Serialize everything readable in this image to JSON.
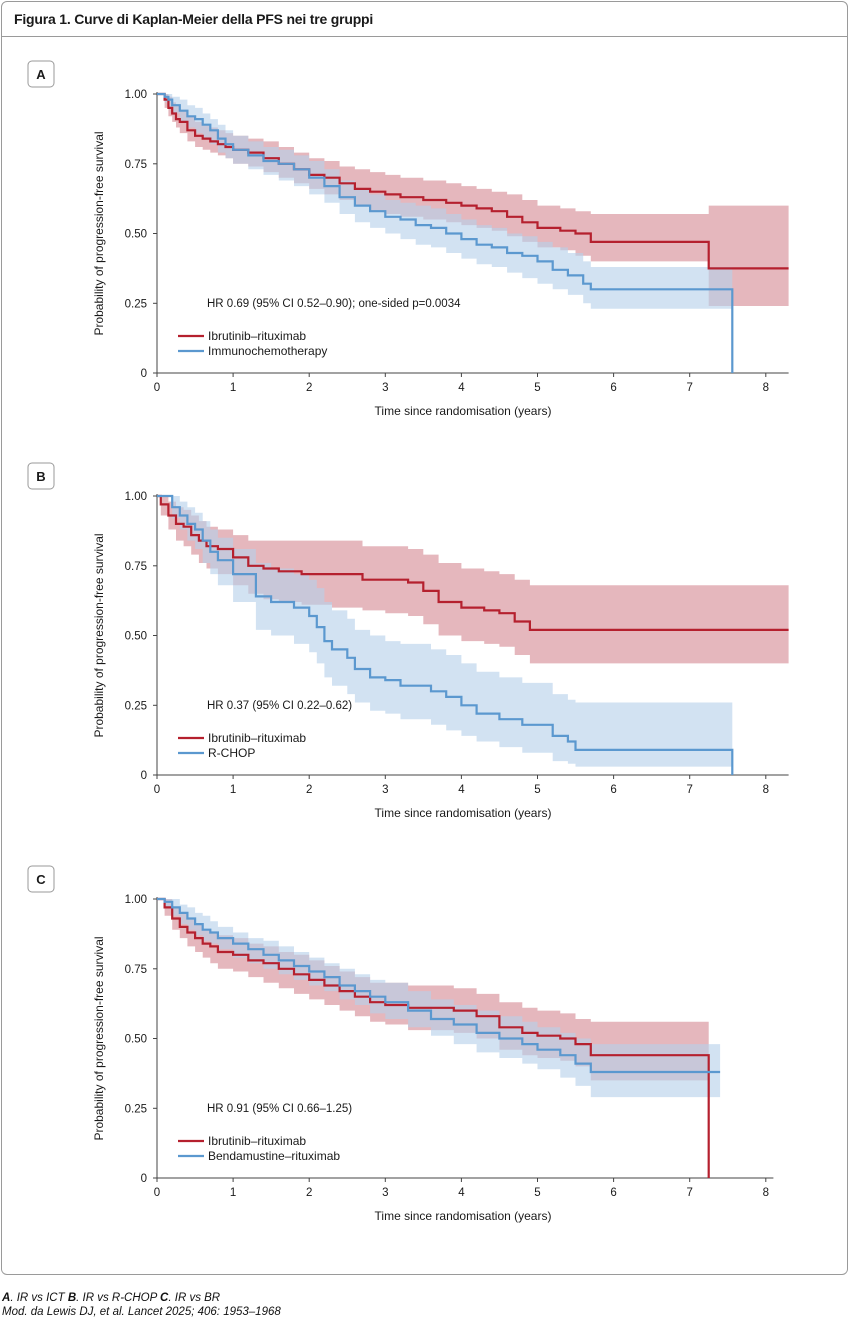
{
  "figure": {
    "title": "Figura 1. Curve di Kaplan-Meier della PFS nei tre gruppi",
    "footer_line1": [
      {
        "bold": "A",
        "text": ". IR vs ICT "
      },
      {
        "bold": "B",
        "text": ". IR vs R-CHOP "
      },
      {
        "bold": "C",
        "text": ". IR vs BR"
      }
    ],
    "footer_line2": "Mod. da Lewis DJ, et al. Lancet 2025; 406: 1953–1968",
    "colors": {
      "ir": "#b5202e",
      "ir_band": "#cf7b86",
      "comp": "#5b98cf",
      "comp_band": "#b6d0ea"
    }
  },
  "chart_data": [
    {
      "type": "line",
      "panel_label": "A",
      "title": "",
      "xlabel": "Time since randomisation (years)",
      "ylabel": "Probability of progression-free survival",
      "xlim": [
        0,
        8.3
      ],
      "ylim": [
        0,
        1
      ],
      "x_ticks": [
        "0",
        "1",
        "2",
        "3",
        "4",
        "5",
        "6",
        "7",
        "8"
      ],
      "y_ticks": [
        "0",
        "0.25",
        "0.50",
        "0.75",
        "1.00"
      ],
      "annotation": "HR 0.69 (95% CI 0.52–0.90); one-sided p=0.0034",
      "series": [
        {
          "name": "Ibrutinib–rituximab",
          "color_key": "ir",
          "x": [
            0,
            0.1,
            0.15,
            0.2,
            0.25,
            0.3,
            0.4,
            0.5,
            0.6,
            0.7,
            0.8,
            0.9,
            1.0,
            1.2,
            1.4,
            1.6,
            1.8,
            2.0,
            2.2,
            2.4,
            2.6,
            2.8,
            3.0,
            3.2,
            3.5,
            3.8,
            4.0,
            4.2,
            4.4,
            4.6,
            4.8,
            5.0,
            5.3,
            5.5,
            5.7,
            6.0,
            6.5,
            7.0,
            7.25,
            7.6,
            8.3
          ],
          "y": [
            1.0,
            0.98,
            0.95,
            0.93,
            0.91,
            0.9,
            0.87,
            0.85,
            0.84,
            0.83,
            0.82,
            0.81,
            0.8,
            0.79,
            0.77,
            0.75,
            0.73,
            0.71,
            0.7,
            0.68,
            0.66,
            0.65,
            0.64,
            0.63,
            0.62,
            0.61,
            0.6,
            0.59,
            0.58,
            0.56,
            0.54,
            0.52,
            0.51,
            0.5,
            0.47,
            0.47,
            0.47,
            0.47,
            0.375,
            0.375,
            0.375
          ],
          "lower": [
            1.0,
            0.95,
            0.92,
            0.9,
            0.88,
            0.86,
            0.83,
            0.81,
            0.8,
            0.79,
            0.78,
            0.77,
            0.75,
            0.74,
            0.72,
            0.7,
            0.68,
            0.66,
            0.64,
            0.62,
            0.6,
            0.58,
            0.57,
            0.56,
            0.55,
            0.54,
            0.53,
            0.52,
            0.51,
            0.49,
            0.47,
            0.45,
            0.44,
            0.42,
            0.4,
            0.4,
            0.4,
            0.4,
            0.24,
            0.24,
            0.24
          ],
          "upper": [
            1.0,
            1.0,
            0.99,
            0.97,
            0.96,
            0.94,
            0.92,
            0.9,
            0.89,
            0.88,
            0.87,
            0.86,
            0.85,
            0.84,
            0.83,
            0.81,
            0.79,
            0.77,
            0.76,
            0.74,
            0.73,
            0.72,
            0.71,
            0.7,
            0.69,
            0.68,
            0.67,
            0.66,
            0.65,
            0.64,
            0.62,
            0.6,
            0.59,
            0.58,
            0.57,
            0.57,
            0.57,
            0.57,
            0.6,
            0.6,
            0.6
          ]
        },
        {
          "name": "Immunochemotherapy",
          "color_key": "comp",
          "x": [
            0,
            0.1,
            0.15,
            0.2,
            0.3,
            0.4,
            0.5,
            0.6,
            0.7,
            0.8,
            0.9,
            1.0,
            1.2,
            1.4,
            1.6,
            1.8,
            2.0,
            2.2,
            2.4,
            2.6,
            2.8,
            3.0,
            3.2,
            3.4,
            3.6,
            3.8,
            4.0,
            4.2,
            4.4,
            4.6,
            4.8,
            5.0,
            5.2,
            5.4,
            5.6,
            5.7,
            6.0,
            6.5,
            7.0,
            7.55,
            7.56
          ],
          "y": [
            1.0,
            0.99,
            0.98,
            0.96,
            0.94,
            0.92,
            0.91,
            0.89,
            0.87,
            0.84,
            0.82,
            0.8,
            0.78,
            0.76,
            0.75,
            0.73,
            0.7,
            0.67,
            0.63,
            0.6,
            0.58,
            0.56,
            0.55,
            0.53,
            0.52,
            0.5,
            0.48,
            0.46,
            0.45,
            0.43,
            0.42,
            0.4,
            0.37,
            0.35,
            0.32,
            0.3,
            0.3,
            0.3,
            0.3,
            0.3,
            0.0
          ],
          "lower": [
            1.0,
            0.97,
            0.95,
            0.93,
            0.9,
            0.88,
            0.86,
            0.84,
            0.82,
            0.79,
            0.77,
            0.75,
            0.73,
            0.71,
            0.69,
            0.67,
            0.64,
            0.61,
            0.57,
            0.54,
            0.52,
            0.5,
            0.48,
            0.46,
            0.45,
            0.43,
            0.41,
            0.39,
            0.38,
            0.36,
            0.34,
            0.32,
            0.3,
            0.28,
            0.25,
            0.23,
            0.23,
            0.23,
            0.23,
            0.23,
            0.0
          ],
          "upper": [
            1.0,
            1.0,
            1.0,
            0.99,
            0.98,
            0.96,
            0.95,
            0.93,
            0.91,
            0.89,
            0.87,
            0.85,
            0.83,
            0.81,
            0.8,
            0.78,
            0.76,
            0.73,
            0.69,
            0.66,
            0.64,
            0.62,
            0.61,
            0.6,
            0.59,
            0.57,
            0.55,
            0.53,
            0.52,
            0.5,
            0.49,
            0.47,
            0.45,
            0.43,
            0.4,
            0.38,
            0.38,
            0.38,
            0.38,
            0.38,
            0.0
          ]
        }
      ]
    },
    {
      "type": "line",
      "panel_label": "B",
      "title": "",
      "xlabel": "Time since randomisation (years)",
      "ylabel": "Probability of progression-free survival",
      "xlim": [
        0,
        8.3
      ],
      "ylim": [
        0,
        1
      ],
      "x_ticks": [
        "0",
        "1",
        "2",
        "3",
        "4",
        "5",
        "6",
        "7",
        "8"
      ],
      "y_ticks": [
        "0",
        "0.25",
        "0.50",
        "0.75",
        "1.00"
      ],
      "annotation": "HR 0.37 (95% CI 0.22–0.62)",
      "series": [
        {
          "name": "Ibrutinib–rituximab",
          "color_key": "ir",
          "x": [
            0,
            0.05,
            0.15,
            0.25,
            0.35,
            0.45,
            0.55,
            0.65,
            0.8,
            1.0,
            1.2,
            1.4,
            1.6,
            1.9,
            2.3,
            2.7,
            3.0,
            3.3,
            3.5,
            3.7,
            4.0,
            4.3,
            4.5,
            4.7,
            4.9,
            5.5,
            6.0,
            7.0,
            8.3
          ],
          "y": [
            1.0,
            0.97,
            0.93,
            0.9,
            0.89,
            0.86,
            0.84,
            0.82,
            0.81,
            0.78,
            0.75,
            0.74,
            0.73,
            0.72,
            0.72,
            0.7,
            0.7,
            0.69,
            0.66,
            0.62,
            0.6,
            0.59,
            0.58,
            0.55,
            0.52,
            0.52,
            0.52,
            0.52,
            0.52
          ],
          "lower": [
            1.0,
            0.93,
            0.88,
            0.84,
            0.82,
            0.79,
            0.76,
            0.74,
            0.72,
            0.68,
            0.65,
            0.63,
            0.62,
            0.61,
            0.6,
            0.59,
            0.58,
            0.57,
            0.54,
            0.5,
            0.48,
            0.47,
            0.46,
            0.43,
            0.4,
            0.4,
            0.4,
            0.4,
            0.4
          ],
          "upper": [
            1.0,
            1.0,
            0.98,
            0.96,
            0.95,
            0.93,
            0.91,
            0.89,
            0.88,
            0.86,
            0.84,
            0.84,
            0.84,
            0.84,
            0.84,
            0.82,
            0.82,
            0.81,
            0.79,
            0.76,
            0.74,
            0.73,
            0.72,
            0.7,
            0.68,
            0.68,
            0.68,
            0.68,
            0.68
          ]
        },
        {
          "name": "R-CHOP",
          "color_key": "comp",
          "x": [
            0,
            0.2,
            0.3,
            0.4,
            0.5,
            0.6,
            0.7,
            0.8,
            1.0,
            1.3,
            1.5,
            1.8,
            2.0,
            2.1,
            2.2,
            2.3,
            2.5,
            2.6,
            2.8,
            3.0,
            3.2,
            3.6,
            3.8,
            4.0,
            4.2,
            4.5,
            4.8,
            5.2,
            5.4,
            5.5,
            6.0,
            7.0,
            7.55,
            7.56
          ],
          "y": [
            1.0,
            0.96,
            0.93,
            0.9,
            0.88,
            0.84,
            0.8,
            0.77,
            0.72,
            0.64,
            0.62,
            0.6,
            0.57,
            0.53,
            0.48,
            0.45,
            0.42,
            0.38,
            0.35,
            0.34,
            0.32,
            0.3,
            0.28,
            0.25,
            0.22,
            0.2,
            0.18,
            0.14,
            0.12,
            0.09,
            0.09,
            0.09,
            0.09,
            0.0
          ],
          "lower": [
            1.0,
            0.92,
            0.88,
            0.84,
            0.81,
            0.76,
            0.72,
            0.68,
            0.62,
            0.52,
            0.5,
            0.47,
            0.44,
            0.4,
            0.35,
            0.32,
            0.29,
            0.26,
            0.23,
            0.22,
            0.2,
            0.18,
            0.16,
            0.14,
            0.12,
            0.1,
            0.08,
            0.05,
            0.04,
            0.03,
            0.03,
            0.03,
            0.03,
            0.0
          ],
          "upper": [
            1.0,
            1.0,
            0.98,
            0.96,
            0.94,
            0.91,
            0.88,
            0.85,
            0.81,
            0.76,
            0.74,
            0.72,
            0.7,
            0.67,
            0.62,
            0.59,
            0.56,
            0.52,
            0.5,
            0.48,
            0.47,
            0.45,
            0.43,
            0.4,
            0.37,
            0.35,
            0.33,
            0.29,
            0.27,
            0.26,
            0.26,
            0.26,
            0.26,
            0.0
          ]
        }
      ]
    },
    {
      "type": "line",
      "panel_label": "C",
      "title": "",
      "xlabel": "Time since randomisation (years)",
      "ylabel": "Probability of progression-free survival",
      "xlim": [
        0,
        8.1
      ],
      "ylim": [
        0,
        1
      ],
      "x_ticks": [
        "0",
        "1",
        "2",
        "3",
        "4",
        "5",
        "6",
        "7",
        "8"
      ],
      "y_ticks": [
        "0",
        "0.25",
        "0.50",
        "0.75",
        "1.00"
      ],
      "annotation": "HR 0.91 (95% CI 0.66–1.25)",
      "series": [
        {
          "name": "Ibrutinib–rituximab",
          "color_key": "ir",
          "x": [
            0,
            0.1,
            0.2,
            0.3,
            0.4,
            0.5,
            0.6,
            0.7,
            0.8,
            1.0,
            1.2,
            1.4,
            1.6,
            1.8,
            2.0,
            2.2,
            2.4,
            2.6,
            2.8,
            3.0,
            3.3,
            3.6,
            3.9,
            4.2,
            4.5,
            4.8,
            5.0,
            5.3,
            5.5,
            5.7,
            6.0,
            6.5,
            7.0,
            7.24,
            7.25
          ],
          "y": [
            1.0,
            0.97,
            0.93,
            0.9,
            0.88,
            0.86,
            0.84,
            0.83,
            0.81,
            0.8,
            0.78,
            0.77,
            0.75,
            0.73,
            0.71,
            0.69,
            0.67,
            0.65,
            0.63,
            0.62,
            0.61,
            0.61,
            0.6,
            0.58,
            0.54,
            0.52,
            0.51,
            0.5,
            0.48,
            0.44,
            0.44,
            0.44,
            0.44,
            0.44,
            0.0
          ],
          "lower": [
            1.0,
            0.94,
            0.89,
            0.86,
            0.83,
            0.81,
            0.79,
            0.77,
            0.75,
            0.74,
            0.72,
            0.7,
            0.68,
            0.66,
            0.64,
            0.62,
            0.6,
            0.58,
            0.56,
            0.55,
            0.53,
            0.53,
            0.52,
            0.5,
            0.46,
            0.44,
            0.43,
            0.42,
            0.4,
            0.35,
            0.35,
            0.35,
            0.35,
            0.35,
            0.0
          ],
          "upper": [
            1.0,
            1.0,
            0.97,
            0.95,
            0.93,
            0.91,
            0.89,
            0.88,
            0.87,
            0.86,
            0.84,
            0.83,
            0.81,
            0.8,
            0.78,
            0.76,
            0.74,
            0.72,
            0.7,
            0.7,
            0.69,
            0.69,
            0.68,
            0.66,
            0.63,
            0.61,
            0.6,
            0.59,
            0.57,
            0.56,
            0.56,
            0.56,
            0.56,
            0.56,
            0.0
          ]
        },
        {
          "name": "Bendamustine–rituximab",
          "color_key": "comp",
          "x": [
            0,
            0.1,
            0.2,
            0.3,
            0.4,
            0.5,
            0.6,
            0.7,
            0.8,
            1.0,
            1.2,
            1.4,
            1.6,
            1.8,
            2.0,
            2.2,
            2.4,
            2.6,
            2.8,
            3.0,
            3.3,
            3.6,
            3.9,
            4.2,
            4.5,
            4.8,
            5.0,
            5.3,
            5.5,
            5.7,
            6.0,
            6.5,
            7.0,
            7.4
          ],
          "y": [
            1.0,
            0.99,
            0.97,
            0.95,
            0.93,
            0.91,
            0.89,
            0.88,
            0.86,
            0.84,
            0.82,
            0.8,
            0.78,
            0.76,
            0.74,
            0.72,
            0.69,
            0.67,
            0.65,
            0.63,
            0.6,
            0.57,
            0.55,
            0.52,
            0.5,
            0.48,
            0.46,
            0.44,
            0.41,
            0.38,
            0.38,
            0.38,
            0.38,
            0.38
          ],
          "lower": [
            1.0,
            0.97,
            0.94,
            0.91,
            0.89,
            0.87,
            0.85,
            0.84,
            0.82,
            0.79,
            0.77,
            0.75,
            0.73,
            0.71,
            0.69,
            0.67,
            0.64,
            0.62,
            0.59,
            0.57,
            0.54,
            0.51,
            0.48,
            0.45,
            0.43,
            0.41,
            0.39,
            0.36,
            0.33,
            0.29,
            0.29,
            0.29,
            0.29,
            0.29
          ],
          "upper": [
            1.0,
            1.0,
            1.0,
            0.98,
            0.97,
            0.95,
            0.94,
            0.92,
            0.9,
            0.88,
            0.86,
            0.85,
            0.83,
            0.81,
            0.79,
            0.77,
            0.75,
            0.73,
            0.71,
            0.7,
            0.67,
            0.64,
            0.62,
            0.6,
            0.58,
            0.56,
            0.54,
            0.52,
            0.5,
            0.48,
            0.48,
            0.48,
            0.48,
            0.48
          ]
        }
      ]
    }
  ]
}
